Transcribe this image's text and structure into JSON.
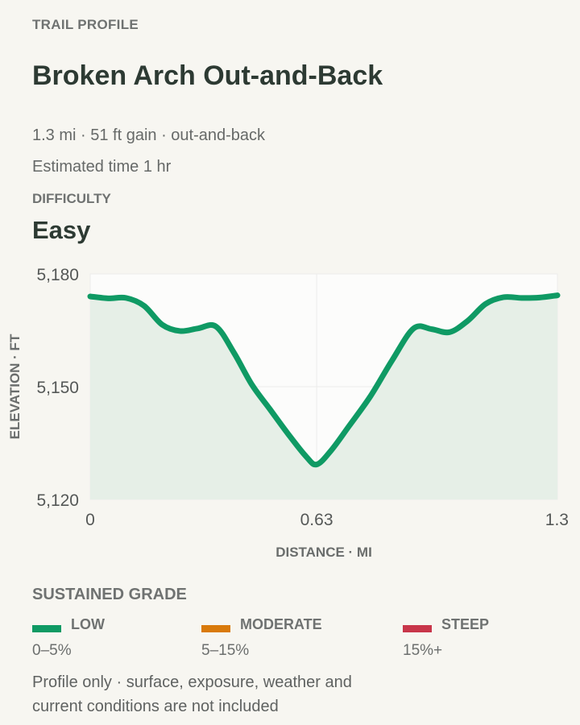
{
  "header": {
    "eyebrow": "TRAIL PROFILE",
    "title": "Broken Arch Out-and-Back",
    "summary": "1.3 mi · 51 ft gain · out-and-back",
    "estimated_time": "Estimated time 1 hr"
  },
  "difficulty": {
    "label": "DIFFICULTY",
    "value": "Easy"
  },
  "chart_data": {
    "type": "area",
    "xlabel": "DISTANCE · MI",
    "ylabel": "ELEVATION · FT",
    "xlim": [
      0,
      1.3
    ],
    "ylim": [
      5120,
      5180
    ],
    "x_ticks": [
      {
        "value": 0,
        "label": "0"
      },
      {
        "value": 0.63,
        "label": "0.63"
      },
      {
        "value": 1.3,
        "label": "1.3"
      }
    ],
    "y_ticks": [
      {
        "value": 5180,
        "label": "5,180"
      },
      {
        "value": 5150,
        "label": "5,150"
      },
      {
        "value": 5120,
        "label": "5,120"
      }
    ],
    "grid": true,
    "line_color": "#0f9a64",
    "fill_color": "#e6efe7",
    "points": [
      {
        "x": 0,
        "y": 5174
      },
      {
        "x": 0.05,
        "y": 5173.5
      },
      {
        "x": 0.1,
        "y": 5173.6
      },
      {
        "x": 0.15,
        "y": 5171.5
      },
      {
        "x": 0.2,
        "y": 5166.5
      },
      {
        "x": 0.25,
        "y": 5164.8
      },
      {
        "x": 0.3,
        "y": 5165.5
      },
      {
        "x": 0.35,
        "y": 5166
      },
      {
        "x": 0.4,
        "y": 5159
      },
      {
        "x": 0.45,
        "y": 5150.5
      },
      {
        "x": 0.5,
        "y": 5144
      },
      {
        "x": 0.55,
        "y": 5137.5
      },
      {
        "x": 0.6,
        "y": 5131.5
      },
      {
        "x": 0.63,
        "y": 5129.3
      },
      {
        "x": 0.67,
        "y": 5133
      },
      {
        "x": 0.72,
        "y": 5139.5
      },
      {
        "x": 0.78,
        "y": 5147.5
      },
      {
        "x": 0.84,
        "y": 5157
      },
      {
        "x": 0.9,
        "y": 5165.5
      },
      {
        "x": 0.95,
        "y": 5165.3
      },
      {
        "x": 1.0,
        "y": 5164.5
      },
      {
        "x": 1.05,
        "y": 5167.5
      },
      {
        "x": 1.1,
        "y": 5172
      },
      {
        "x": 1.15,
        "y": 5173.8
      },
      {
        "x": 1.2,
        "y": 5173.6
      },
      {
        "x": 1.25,
        "y": 5173.7
      },
      {
        "x": 1.3,
        "y": 5174.3
      }
    ]
  },
  "grade": {
    "heading": "SUSTAINED GRADE",
    "legend": [
      {
        "name": "LOW",
        "range": "0–5%",
        "color": "#0f9a64"
      },
      {
        "name": "MODERATE",
        "range": "5–15%",
        "color": "#d97a0b"
      },
      {
        "name": "STEEP",
        "range": "15%+",
        "color": "#c8364a"
      }
    ]
  },
  "footnote": "Profile only · surface, exposure, weather and current conditions are not included"
}
